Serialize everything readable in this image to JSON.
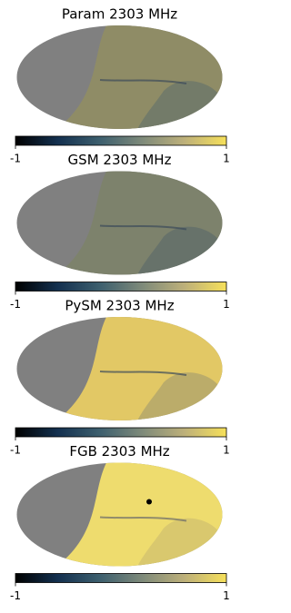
{
  "panels": [
    {
      "title": "Param 2303 MHz",
      "colorbar": {
        "ticks": [
          -1,
          1
        ]
      }
    },
    {
      "title": "GSM 2303 MHz",
      "colorbar": {
        "ticks": [
          -1,
          1
        ]
      }
    },
    {
      "title": "PySM 2303 MHz",
      "colorbar": {
        "ticks": [
          -1,
          1
        ]
      }
    },
    {
      "title": "FGB 2303 MHz",
      "colorbar": {
        "ticks": [
          -1,
          1
        ]
      }
    }
  ]
}
